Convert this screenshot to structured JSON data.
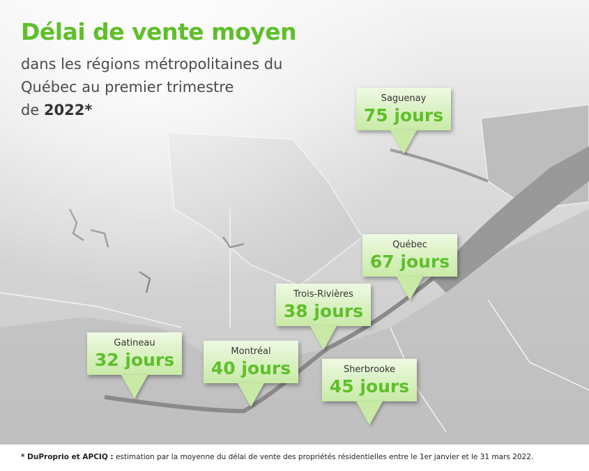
{
  "header": {
    "title": "Délai de vente moyen",
    "subtitle_lines": [
      "dans les régions métropolitaines du",
      "Québec au premier trimestre"
    ],
    "subtitle_last_plain": "de",
    "subtitle_last_bold": "2022*"
  },
  "markers": [
    {
      "name": "Saguenay",
      "label": "75 jours"
    },
    {
      "name": "Québec",
      "label": "67 jours"
    },
    {
      "name": "Trois-Rivières",
      "label": "38 jours"
    },
    {
      "name": "Gatineau",
      "label": "32 jours"
    },
    {
      "name": "Montréal",
      "label": "40 jours"
    },
    {
      "name": "Sherbrooke",
      "label": "45 jours"
    }
  ],
  "footnote": {
    "bold": "* DuProprio et APCIQ :",
    "text": "estimation par la moyenne du délai de vente des propriétés résidentielles entre le 1er janvier et le 31 mars 2022."
  }
}
